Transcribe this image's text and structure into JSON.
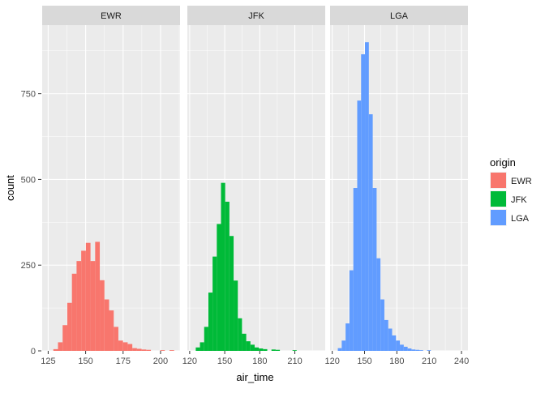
{
  "chart_data": {
    "type": "bar",
    "subtype": "faceted-histogram",
    "xlabel": "air_time",
    "ylabel": "count",
    "ylim": [
      0,
      950
    ],
    "y_ticks": [
      0,
      250,
      500,
      750
    ],
    "grid": true,
    "legend": {
      "title": "origin",
      "placement": "right",
      "entries": [
        {
          "label": "EWR",
          "color": "#F8766D"
        },
        {
          "label": "JFK",
          "color": "#00BA38"
        },
        {
          "label": "LGA",
          "color": "#619CFF"
        }
      ]
    },
    "panels": [
      {
        "name": "EWR",
        "color": "#F8766D",
        "xlim": [
          121,
          213
        ],
        "x_ticks": [
          125,
          150,
          175,
          200
        ],
        "bin_width": 3.1,
        "series": [
          {
            "name": "EWR",
            "values": [
              {
                "x": 130.0,
                "y": 5
              },
              {
                "x": 133.1,
                "y": 25
              },
              {
                "x": 136.2,
                "y": 75
              },
              {
                "x": 139.3,
                "y": 140
              },
              {
                "x": 142.4,
                "y": 225
              },
              {
                "x": 145.5,
                "y": 262
              },
              {
                "x": 148.6,
                "y": 292
              },
              {
                "x": 151.7,
                "y": 315
              },
              {
                "x": 154.8,
                "y": 262
              },
              {
                "x": 157.9,
                "y": 318
              },
              {
                "x": 161.0,
                "y": 206
              },
              {
                "x": 164.1,
                "y": 150
              },
              {
                "x": 167.2,
                "y": 118
              },
              {
                "x": 170.3,
                "y": 70
              },
              {
                "x": 173.4,
                "y": 30
              },
              {
                "x": 176.5,
                "y": 25
              },
              {
                "x": 179.6,
                "y": 20
              },
              {
                "x": 182.7,
                "y": 8
              },
              {
                "x": 185.8,
                "y": 6
              },
              {
                "x": 188.9,
                "y": 4
              },
              {
                "x": 192.0,
                "y": 3
              },
              {
                "x": 201.3,
                "y": 2
              },
              {
                "x": 207.5,
                "y": 2
              }
            ]
          }
        ]
      },
      {
        "name": "JFK",
        "color": "#00BA38",
        "xlim": [
          118,
          236
        ],
        "x_ticks": [
          120,
          150,
          180,
          210
        ],
        "bin_width": 3.6,
        "series": [
          {
            "name": "JFK",
            "values": [
              {
                "x": 127.0,
                "y": 10
              },
              {
                "x": 130.6,
                "y": 25
              },
              {
                "x": 134.2,
                "y": 70
              },
              {
                "x": 137.8,
                "y": 170
              },
              {
                "x": 141.4,
                "y": 275
              },
              {
                "x": 145.0,
                "y": 370
              },
              {
                "x": 148.6,
                "y": 490
              },
              {
                "x": 152.2,
                "y": 435
              },
              {
                "x": 155.8,
                "y": 335
              },
              {
                "x": 159.4,
                "y": 205
              },
              {
                "x": 163.0,
                "y": 95
              },
              {
                "x": 166.6,
                "y": 50
              },
              {
                "x": 170.2,
                "y": 28
              },
              {
                "x": 173.8,
                "y": 18
              },
              {
                "x": 177.4,
                "y": 10
              },
              {
                "x": 181.0,
                "y": 7
              },
              {
                "x": 184.6,
                "y": 5
              },
              {
                "x": 191.8,
                "y": 4
              },
              {
                "x": 195.4,
                "y": 3
              },
              {
                "x": 209.8,
                "y": 2
              }
            ]
          }
        ]
      },
      {
        "name": "LGA",
        "color": "#619CFF",
        "xlim": [
          118,
          246
        ],
        "x_ticks": [
          120,
          150,
          180,
          210,
          240
        ],
        "bin_width": 3.6,
        "series": [
          {
            "name": "LGA",
            "values": [
              {
                "x": 127.0,
                "y": 8
              },
              {
                "x": 130.6,
                "y": 30
              },
              {
                "x": 134.2,
                "y": 80
              },
              {
                "x": 137.8,
                "y": 235
              },
              {
                "x": 141.4,
                "y": 475
              },
              {
                "x": 145.0,
                "y": 730
              },
              {
                "x": 148.6,
                "y": 865
              },
              {
                "x": 152.2,
                "y": 900
              },
              {
                "x": 155.8,
                "y": 690
              },
              {
                "x": 159.4,
                "y": 475
              },
              {
                "x": 163.0,
                "y": 270
              },
              {
                "x": 166.6,
                "y": 150
              },
              {
                "x": 170.2,
                "y": 90
              },
              {
                "x": 173.8,
                "y": 65
              },
              {
                "x": 177.4,
                "y": 45
              },
              {
                "x": 181.0,
                "y": 30
              },
              {
                "x": 184.6,
                "y": 18
              },
              {
                "x": 188.2,
                "y": 12
              },
              {
                "x": 191.8,
                "y": 7
              },
              {
                "x": 195.4,
                "y": 4
              },
              {
                "x": 199.0,
                "y": 3
              },
              {
                "x": 202.6,
                "y": 2
              },
              {
                "x": 209.8,
                "y": 2
              }
            ]
          }
        ]
      }
    ]
  }
}
